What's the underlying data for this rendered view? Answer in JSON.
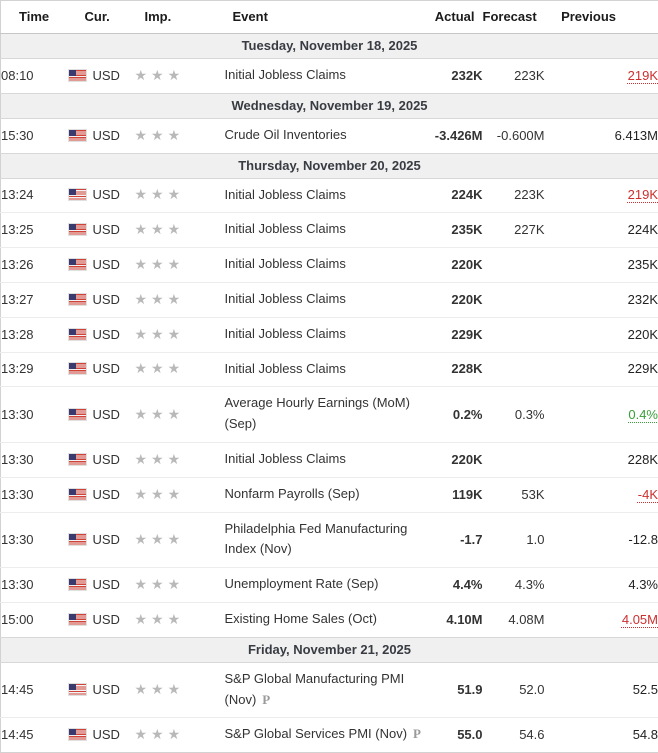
{
  "colors": {
    "red": "#cc2f2f",
    "green": "#3a9e3a"
  },
  "icons": {
    "star": "★",
    "preliminary": "P",
    "flag": "us-flag"
  },
  "table": {
    "columns": [
      "Time",
      "Cur.",
      "Imp.",
      "Event",
      "Actual",
      "Forecast",
      "Previous"
    ],
    "currency_label": "USD",
    "importance_stars": 3
  },
  "groups": [
    {
      "date": "Tuesday, November 18, 2025",
      "rows": [
        {
          "time": "08:10",
          "currency": "USD",
          "stars": 3,
          "event": "Initial Jobless Claims",
          "prelim": false,
          "actual": "232K",
          "actual_color": "red",
          "forecast": "223K",
          "previous": "219K",
          "previous_color": "red",
          "previous_revised": true
        }
      ]
    },
    {
      "date": "Wednesday, November 19, 2025",
      "rows": [
        {
          "time": "15:30",
          "currency": "USD",
          "stars": 3,
          "event": "Crude Oil Inventories",
          "prelim": false,
          "actual": "-3.426M",
          "actual_color": "green",
          "forecast": "-0.600M",
          "previous": "6.413M",
          "previous_color": "black",
          "previous_revised": false
        }
      ]
    },
    {
      "date": "Thursday, November 20, 2025",
      "rows": [
        {
          "time": "13:24",
          "currency": "USD",
          "stars": 3,
          "event": "Initial Jobless Claims",
          "prelim": false,
          "actual": "224K",
          "actual_color": "red",
          "forecast": "223K",
          "previous": "219K",
          "previous_color": "red",
          "previous_revised": true
        },
        {
          "time": "13:25",
          "currency": "USD",
          "stars": 3,
          "event": "Initial Jobless Claims",
          "prelim": false,
          "actual": "235K",
          "actual_color": "red",
          "forecast": "227K",
          "previous": "224K",
          "previous_color": "black",
          "previous_revised": false
        },
        {
          "time": "13:26",
          "currency": "USD",
          "stars": 3,
          "event": "Initial Jobless Claims",
          "prelim": false,
          "actual": "220K",
          "actual_color": "black",
          "forecast": "",
          "previous": "235K",
          "previous_color": "black",
          "previous_revised": false
        },
        {
          "time": "13:27",
          "currency": "USD",
          "stars": 3,
          "event": "Initial Jobless Claims",
          "prelim": false,
          "actual": "220K",
          "actual_color": "black",
          "forecast": "",
          "previous": "232K",
          "previous_color": "black",
          "previous_revised": false
        },
        {
          "time": "13:28",
          "currency": "USD",
          "stars": 3,
          "event": "Initial Jobless Claims",
          "prelim": false,
          "actual": "229K",
          "actual_color": "black",
          "forecast": "",
          "previous": "220K",
          "previous_color": "black",
          "previous_revised": false
        },
        {
          "time": "13:29",
          "currency": "USD",
          "stars": 3,
          "event": "Initial Jobless Claims",
          "prelim": false,
          "actual": "228K",
          "actual_color": "black",
          "forecast": "",
          "previous": "229K",
          "previous_color": "black",
          "previous_revised": false
        },
        {
          "time": "13:30",
          "currency": "USD",
          "stars": 3,
          "event": "Average Hourly Earnings (MoM) (Sep)",
          "prelim": false,
          "actual": "0.2%",
          "actual_color": "red",
          "forecast": "0.3%",
          "previous": "0.4%",
          "previous_color": "green",
          "previous_revised": true
        },
        {
          "time": "13:30",
          "currency": "USD",
          "stars": 3,
          "event": "Initial Jobless Claims",
          "prelim": false,
          "actual": "220K",
          "actual_color": "black",
          "forecast": "",
          "previous": "228K",
          "previous_color": "black",
          "previous_revised": false
        },
        {
          "time": "13:30",
          "currency": "USD",
          "stars": 3,
          "event": "Nonfarm Payrolls (Sep)",
          "prelim": false,
          "actual": "119K",
          "actual_color": "green",
          "forecast": "53K",
          "previous": "-4K",
          "previous_color": "red",
          "previous_revised": true
        },
        {
          "time": "13:30",
          "currency": "USD",
          "stars": 3,
          "event": "Philadelphia Fed Manufacturing Index (Nov)",
          "prelim": false,
          "actual": "-1.7",
          "actual_color": "red",
          "forecast": "1.0",
          "previous": "-12.8",
          "previous_color": "black",
          "previous_revised": false
        },
        {
          "time": "13:30",
          "currency": "USD",
          "stars": 3,
          "event": "Unemployment Rate (Sep)",
          "prelim": false,
          "actual": "4.4%",
          "actual_color": "red",
          "forecast": "4.3%",
          "previous": "4.3%",
          "previous_color": "black",
          "previous_revised": false
        },
        {
          "time": "15:00",
          "currency": "USD",
          "stars": 3,
          "event": "Existing Home Sales (Oct)",
          "prelim": false,
          "actual": "4.10M",
          "actual_color": "green",
          "forecast": "4.08M",
          "previous": "4.05M",
          "previous_color": "red",
          "previous_revised": true
        }
      ]
    },
    {
      "date": "Friday, November 21, 2025",
      "rows": [
        {
          "time": "14:45",
          "currency": "USD",
          "stars": 3,
          "event": "S&P Global Manufacturing PMI (Nov)",
          "prelim": true,
          "actual": "51.9",
          "actual_color": "red",
          "forecast": "52.0",
          "previous": "52.5",
          "previous_color": "black",
          "previous_revised": false
        },
        {
          "time": "14:45",
          "currency": "USD",
          "stars": 3,
          "event": "S&P Global Services PMI (Nov)",
          "prelim": true,
          "actual": "55.0",
          "actual_color": "green",
          "forecast": "54.6",
          "previous": "54.8",
          "previous_color": "black",
          "previous_revised": false
        }
      ]
    }
  ]
}
